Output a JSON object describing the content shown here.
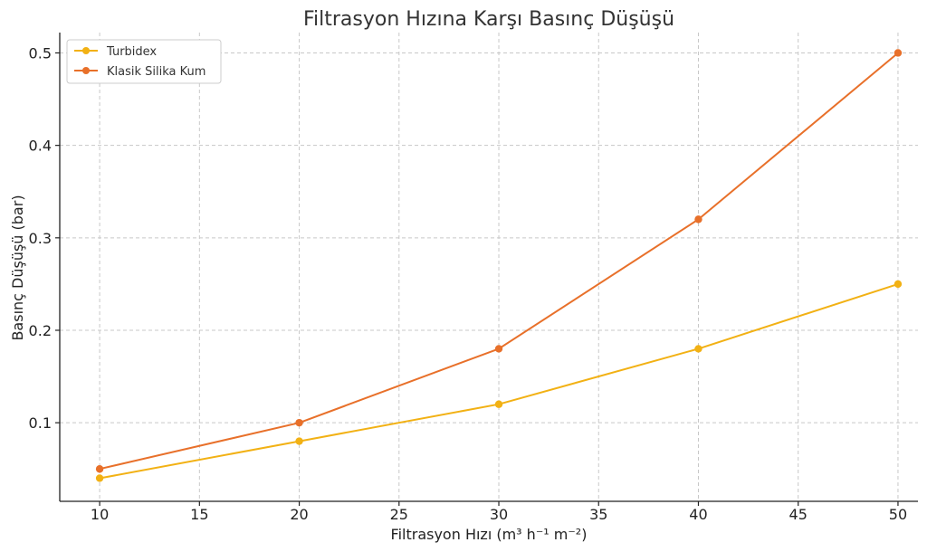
{
  "chart_data": {
    "type": "line",
    "title": "Filtrasyon Hızına Karşı Basınç Düşüşü",
    "xlabel": "Filtrasyon Hızı (m³ h⁻¹ m⁻²)",
    "ylabel": "Basınç Düşüşü (bar)",
    "x": [
      10,
      20,
      30,
      40,
      50
    ],
    "xlim": [
      8,
      51
    ],
    "ylim": [
      0.015,
      0.522
    ],
    "xticks": [
      10,
      15,
      20,
      25,
      30,
      35,
      40,
      45,
      50
    ],
    "yticks": [
      0.1,
      0.2,
      0.3,
      0.4,
      0.5
    ],
    "xtick_labels": [
      "10",
      "15",
      "20",
      "25",
      "30",
      "35",
      "40",
      "45",
      "50"
    ],
    "ytick_labels": [
      "0.1",
      "0.2",
      "0.3",
      "0.4",
      "0.5"
    ],
    "grid": true,
    "legend_position": "top-left",
    "series": [
      {
        "name": "Turbidex",
        "color": "#f2b114",
        "values": [
          0.04,
          0.08,
          0.12,
          0.18,
          0.25
        ]
      },
      {
        "name": "Klasik Silika Kum",
        "color": "#e8702a",
        "values": [
          0.05,
          0.1,
          0.18,
          0.32,
          0.5
        ]
      }
    ]
  }
}
